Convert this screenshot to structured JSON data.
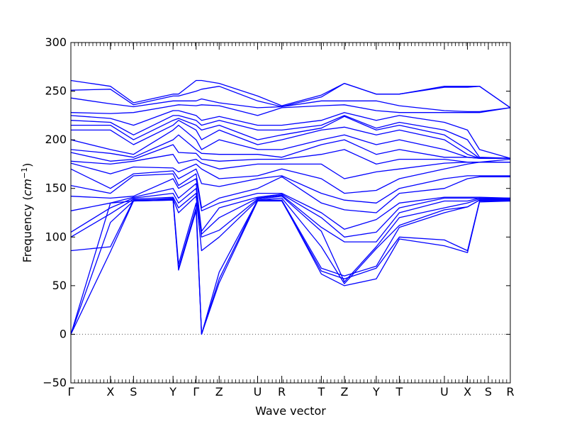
{
  "chart_data": {
    "type": "line",
    "title": "",
    "xlabel": "Wave vector",
    "ylabel": "Frequency",
    "ylabel_unit": "cm",
    "ylabel_unit_exponent": "−1",
    "ylim": [
      -50,
      300
    ],
    "yticks": [
      -50,
      0,
      50,
      100,
      150,
      200,
      250,
      300
    ],
    "ytick_labels": [
      "−50",
      "0",
      "50",
      "100",
      "150",
      "200",
      "250",
      "300"
    ],
    "xlim": [
      0,
      20
    ],
    "grid": false,
    "zero_line": {
      "y": 0,
      "style": "dotted",
      "color": "#555555"
    },
    "line_color": "#0000ff",
    "high_symmetry_points": [
      {
        "label": "Γ",
        "x": 0.0
      },
      {
        "label": "X",
        "x": 1.8
      },
      {
        "label": "S",
        "x": 2.85
      },
      {
        "label": "Y",
        "x": 4.65
      },
      {
        "label": "Γ",
        "x": 5.7
      },
      {
        "label": "Z",
        "x": 6.75
      },
      {
        "label": "U",
        "x": 8.5
      },
      {
        "label": "R",
        "x": 9.6
      },
      {
        "label": "T",
        "x": 11.4
      },
      {
        "label": "Z",
        "x": 12.45
      },
      {
        "label": "Y",
        "x": 13.9
      },
      {
        "label": "T",
        "x": 14.95
      },
      {
        "label": "U",
        "x": 17.0
      },
      {
        "label": "X",
        "x": 18.05
      },
      {
        "label": "S",
        "x": 19.0
      },
      {
        "label": "R",
        "x": 20.0
      }
    ],
    "series": [
      {
        "values": [
          0,
          85,
          137,
          138,
          68,
          130,
          0,
          57,
          138,
          138,
          62,
          50,
          57,
          98,
          91,
          84,
          136,
          137
        ]
      },
      {
        "values": [
          0,
          115,
          137,
          138,
          66,
          127,
          0,
          53,
          137,
          137,
          65,
          57,
          68,
          100,
          97,
          86,
          137,
          137
        ]
      },
      {
        "values": [
          0,
          135,
          137,
          140,
          72,
          135,
          0,
          64,
          138,
          138,
          68,
          60,
          70,
          110,
          125,
          131,
          138,
          138
        ]
      },
      {
        "values": [
          86,
          90,
          138,
          139,
          125,
          142,
          86,
          100,
          138,
          140,
          90,
          52,
          88,
          112,
          128,
          131,
          138,
          138
        ]
      },
      {
        "values": [
          100,
          124,
          139,
          141,
          130,
          145,
          100,
          107,
          139,
          142,
          106,
          54,
          90,
          120,
          130,
          135,
          139,
          139
        ]
      },
      {
        "values": [
          105,
          130,
          140,
          145,
          135,
          150,
          103,
          120,
          140,
          143,
          110,
          95,
          95,
          125,
          137,
          137,
          140,
          139
        ]
      },
      {
        "values": [
          127,
          135,
          141,
          150,
          140,
          155,
          106,
          130,
          141,
          144,
          120,
          100,
          105,
          130,
          140,
          140,
          140,
          140
        ]
      },
      {
        "values": [
          142,
          140,
          142,
          160,
          150,
          160,
          127,
          135,
          145,
          145,
          125,
          108,
          118,
          135,
          141,
          141,
          141,
          140
        ]
      },
      {
        "values": [
          153,
          145,
          163,
          165,
          153,
          165,
          130,
          140,
          150,
          162,
          135,
          128,
          125,
          145,
          150,
          160,
          162,
          162
        ]
      },
      {
        "values": [
          170,
          150,
          165,
          168,
          160,
          170,
          155,
          152,
          160,
          163,
          145,
          138,
          135,
          150,
          160,
          163,
          163,
          163
        ]
      },
      {
        "values": [
          176,
          165,
          172,
          171,
          167,
          175,
          170,
          160,
          163,
          170,
          160,
          145,
          148,
          160,
          170,
          175,
          177,
          177
        ]
      },
      {
        "values": [
          178,
          175,
          178,
          185,
          176,
          180,
          176,
          170,
          175,
          175,
          175,
          160,
          167,
          170,
          176,
          177,
          177,
          177
        ]
      },
      {
        "values": [
          187,
          178,
          180,
          195,
          187,
          186,
          180,
          178,
          180,
          180,
          185,
          190,
          175,
          180,
          180,
          177,
          177,
          180
        ]
      },
      {
        "values": [
          190,
          186,
          182,
          200,
          205,
          190,
          186,
          185,
          185,
          182,
          195,
          200,
          185,
          190,
          182,
          182,
          181,
          181
        ]
      },
      {
        "values": [
          200,
          190,
          185,
          210,
          215,
          200,
          190,
          200,
          190,
          190,
          200,
          205,
          195,
          200,
          190,
          182,
          181,
          181
        ]
      },
      {
        "values": [
          210,
          210,
          195,
          215,
          220,
          210,
          200,
          210,
          195,
          200,
          210,
          213,
          205,
          210,
          200,
          185,
          181,
          181
        ]
      },
      {
        "values": [
          215,
          215,
          200,
          220,
          222,
          215,
          210,
          215,
          200,
          205,
          212,
          224,
          210,
          215,
          205,
          190,
          181,
          181
        ]
      },
      {
        "values": [
          220,
          218,
          205,
          225,
          225,
          220,
          215,
          220,
          210,
          210,
          215,
          225,
          212,
          218,
          210,
          200,
          182,
          181
        ]
      },
      {
        "values": [
          225,
          222,
          215,
          230,
          230,
          225,
          220,
          224,
          215,
          215,
          220,
          228,
          220,
          225,
          218,
          210,
          190,
          181
        ]
      },
      {
        "values": [
          228,
          227,
          228,
          235,
          236,
          235,
          236,
          235,
          225,
          233,
          235,
          236,
          230,
          228,
          228,
          228,
          228,
          233
        ]
      },
      {
        "values": [
          243,
          237,
          234,
          240,
          240,
          240,
          242,
          238,
          233,
          234,
          240,
          240,
          240,
          235,
          230,
          229,
          229,
          233
        ]
      },
      {
        "values": [
          251,
          252,
          236,
          245,
          245,
          250,
          252,
          255,
          240,
          234,
          244,
          258,
          247,
          247,
          254,
          254,
          255,
          233
        ]
      },
      {
        "values": [
          261,
          255,
          238,
          247,
          247,
          261,
          261,
          258,
          245,
          235,
          246,
          258,
          247,
          247,
          255,
          255,
          255,
          233
        ]
      }
    ],
    "series_x": [
      0,
      1.8,
      2.85,
      4.65,
      4.9,
      5.7,
      5.95,
      6.75,
      8.5,
      9.6,
      11.4,
      12.45,
      13.9,
      14.95,
      17.0,
      18.05,
      18.6,
      20.0
    ]
  }
}
